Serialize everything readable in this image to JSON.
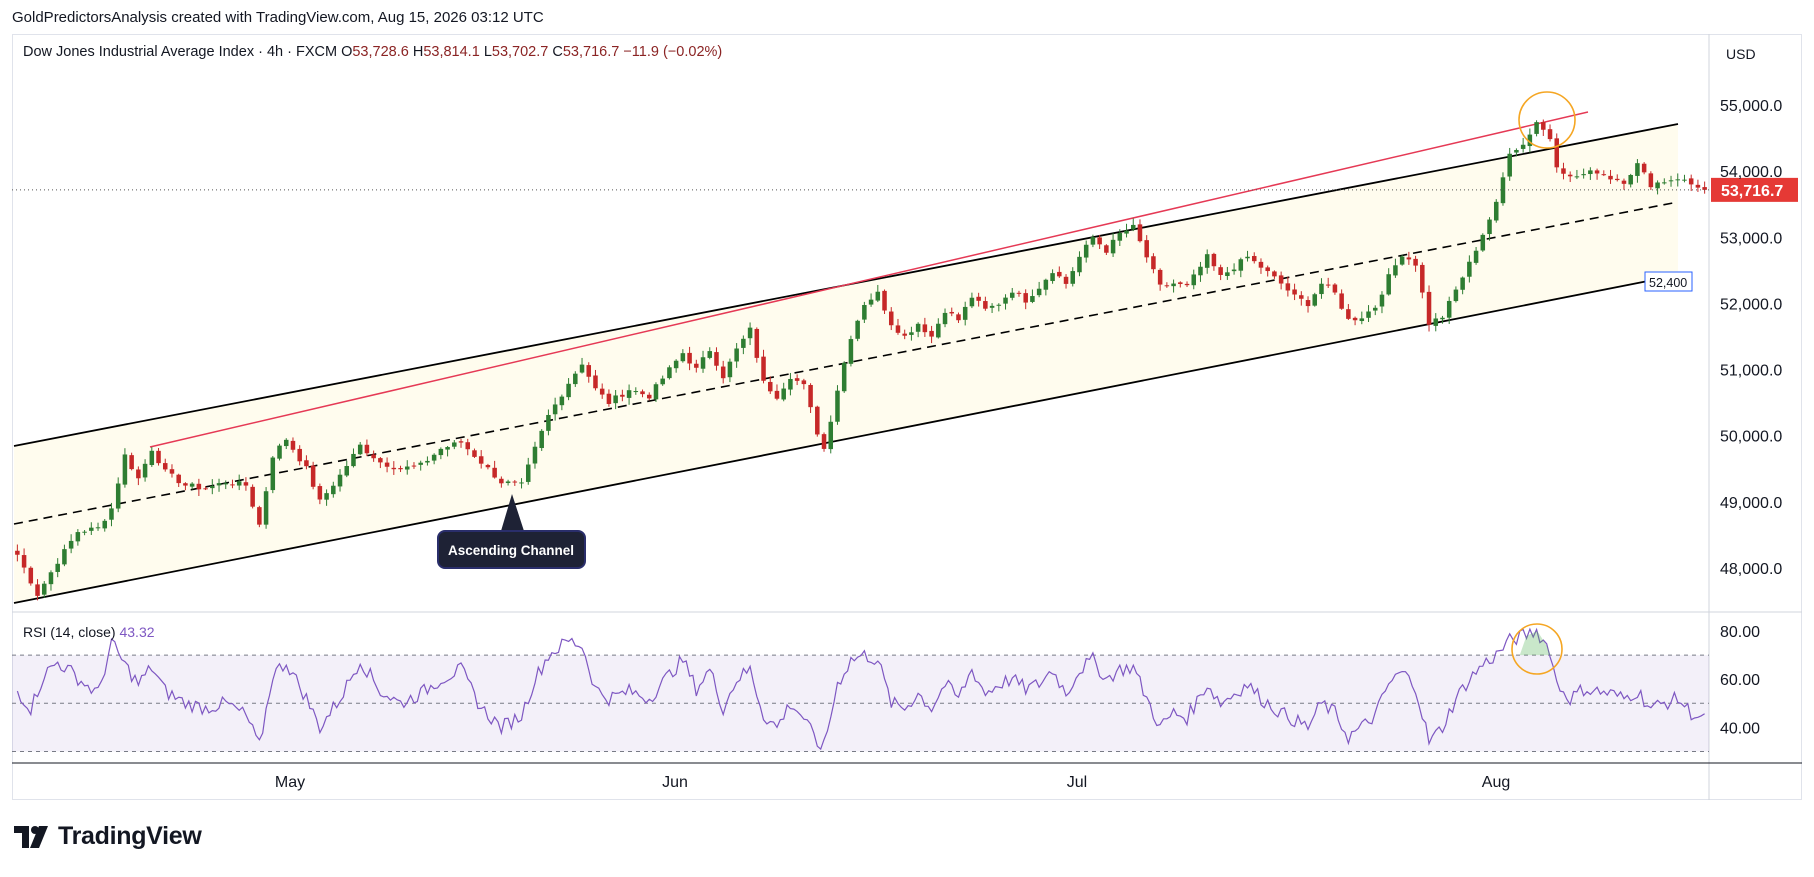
{
  "header": {
    "attribution": "GoldPredictorsAnalysis created with TradingView.com, Aug 15, 2026 03:12 UTC"
  },
  "legend": {
    "symbol": "Dow Jones Industrial Average Index · 4h · FXCM",
    "open_label": "O",
    "open": "53,728.6",
    "high_label": "H",
    "high": "53,814.1",
    "low_label": "L",
    "low": "53,702.7",
    "close_label": "C",
    "close": "53,716.7",
    "change": "−11.9 (−0.02%)"
  },
  "currency": "USD",
  "footer": {
    "brand": "TradingView"
  },
  "colors": {
    "up": "#26a69a",
    "up_candle": "#2e7d32",
    "down": "#c62828",
    "rsi": "#7e57c2",
    "red_trendline": "#e53955",
    "last_price": "#e53935",
    "annotation_circle": "#f5a623"
  },
  "chart_data": [
    {
      "type": "candlestick",
      "title": "Dow Jones Industrial Average Index · 4h · FXCM",
      "y_ticks": [
        "55,000.0",
        "54,000.0",
        "53,000.0",
        "52,000.0",
        "51,000.0",
        "50,000.0",
        "49,000.0",
        "48,000.0"
      ],
      "y_tick_values": [
        55000,
        54000,
        53000,
        52000,
        51000,
        50000,
        49000,
        48000
      ],
      "ylim": [
        47450,
        55750
      ],
      "x_ticks": [
        "May",
        "Jun",
        "Jul",
        "Aug"
      ],
      "last_price": {
        "value": 53716.7,
        "label": "53,716.7"
      },
      "channel_label": {
        "value": 52400,
        "label": "52,400"
      },
      "annotation": {
        "text": "Ascending Channel"
      },
      "price_path": [
        [
          0,
          48200
        ],
        [
          3,
          47600
        ],
        [
          6,
          48100
        ],
        [
          9,
          48550
        ],
        [
          12,
          48600
        ],
        [
          14,
          48900
        ],
        [
          16,
          49700
        ],
        [
          18,
          49350
        ],
        [
          20,
          49800
        ],
        [
          22,
          49450
        ],
        [
          25,
          49250
        ],
        [
          28,
          49200
        ],
        [
          31,
          49300
        ],
        [
          34,
          49250
        ],
        [
          36,
          48650
        ],
        [
          38,
          49700
        ],
        [
          40,
          49950
        ],
        [
          43,
          49500
        ],
        [
          45,
          49000
        ],
        [
          48,
          49400
        ],
        [
          51,
          49850
        ],
        [
          54,
          49600
        ],
        [
          57,
          49500
        ],
        [
          60,
          49550
        ],
        [
          63,
          49800
        ],
        [
          66,
          49900
        ],
        [
          69,
          49600
        ],
        [
          72,
          49300
        ],
        [
          75,
          49250
        ],
        [
          77,
          49800
        ],
        [
          79,
          50300
        ],
        [
          82,
          50800
        ],
        [
          84,
          51100
        ],
        [
          86,
          50700
        ],
        [
          88,
          50500
        ],
        [
          91,
          50700
        ],
        [
          94,
          50600
        ],
        [
          97,
          51000
        ],
        [
          99,
          51250
        ],
        [
          101,
          51000
        ],
        [
          103,
          51300
        ],
        [
          105,
          50900
        ],
        [
          107,
          51300
        ],
        [
          109,
          51600
        ],
        [
          111,
          50800
        ],
        [
          113,
          50600
        ],
        [
          115,
          50900
        ],
        [
          117,
          50750
        ],
        [
          119,
          50050
        ],
        [
          120,
          49800
        ],
        [
          122,
          50700
        ],
        [
          124,
          51500
        ],
        [
          126,
          52000
        ],
        [
          128,
          52150
        ],
        [
          130,
          51700
        ],
        [
          132,
          51500
        ],
        [
          134,
          51700
        ],
        [
          136,
          51500
        ],
        [
          138,
          51900
        ],
        [
          140,
          51750
        ],
        [
          142,
          52100
        ],
        [
          144,
          51900
        ],
        [
          146,
          52000
        ],
        [
          148,
          52200
        ],
        [
          150,
          52050
        ],
        [
          152,
          52250
        ],
        [
          154,
          52500
        ],
        [
          156,
          52300
        ],
        [
          158,
          52700
        ],
        [
          160,
          53000
        ],
        [
          162,
          52800
        ],
        [
          164,
          53050
        ],
        [
          166,
          53150
        ],
        [
          168,
          52700
        ],
        [
          170,
          52250
        ],
        [
          172,
          52300
        ],
        [
          174,
          52250
        ],
        [
          177,
          52700
        ],
        [
          179,
          52400
        ],
        [
          181,
          52550
        ],
        [
          183,
          52700
        ],
        [
          185,
          52550
        ],
        [
          188,
          52300
        ],
        [
          190,
          52100
        ],
        [
          192,
          52000
        ],
        [
          194,
          52300
        ],
        [
          196,
          52150
        ],
        [
          198,
          51750
        ],
        [
          200,
          51800
        ],
        [
          202,
          51950
        ],
        [
          204,
          52400
        ],
        [
          206,
          52750
        ],
        [
          208,
          52600
        ],
        [
          210,
          51700
        ],
        [
          212,
          51800
        ],
        [
          214,
          52200
        ],
        [
          216,
          52600
        ],
        [
          218,
          53050
        ],
        [
          220,
          53500
        ],
        [
          222,
          54300
        ],
        [
          224,
          54400
        ],
        [
          226,
          54750
        ],
        [
          228,
          54500
        ],
        [
          229,
          54100
        ],
        [
          231,
          53900
        ],
        [
          233,
          53950
        ],
        [
          235,
          54000
        ],
        [
          237,
          53900
        ],
        [
          239,
          53850
        ],
        [
          241,
          54100
        ],
        [
          243,
          53800
        ],
        [
          245,
          53850
        ],
        [
          247,
          53900
        ],
        [
          249,
          53800
        ],
        [
          251,
          53750
        ]
      ]
    },
    {
      "type": "line",
      "title": "RSI (14, close)",
      "value_label": "43.32",
      "y_ticks": [
        "80.00",
        "60.00",
        "40.00"
      ],
      "y_tick_values": [
        80,
        60,
        40
      ],
      "ylim": [
        30,
        83
      ],
      "bands": [
        70,
        50,
        30
      ],
      "x_ticks": [
        "May",
        "Jun",
        "Jul",
        "Aug"
      ],
      "values": [
        [
          0,
          55
        ],
        [
          2,
          48
        ],
        [
          4,
          62
        ],
        [
          6,
          67
        ],
        [
          8,
          63
        ],
        [
          10,
          58
        ],
        [
          12,
          54
        ],
        [
          14,
          75
        ],
        [
          16,
          66
        ],
        [
          18,
          58
        ],
        [
          20,
          65
        ],
        [
          22,
          55
        ],
        [
          25,
          50
        ],
        [
          28,
          48
        ],
        [
          31,
          50
        ],
        [
          34,
          45
        ],
        [
          36,
          32
        ],
        [
          38,
          62
        ],
        [
          40,
          67
        ],
        [
          43,
          52
        ],
        [
          45,
          40
        ],
        [
          48,
          52
        ],
        [
          51,
          68
        ],
        [
          54,
          55
        ],
        [
          57,
          50
        ],
        [
          60,
          54
        ],
        [
          63,
          60
        ],
        [
          66,
          64
        ],
        [
          69,
          48
        ],
        [
          72,
          40
        ],
        [
          75,
          45
        ],
        [
          77,
          60
        ],
        [
          79,
          70
        ],
        [
          82,
          76
        ],
        [
          84,
          74
        ],
        [
          86,
          56
        ],
        [
          88,
          52
        ],
        [
          91,
          55
        ],
        [
          94,
          52
        ],
        [
          97,
          62
        ],
        [
          99,
          68
        ],
        [
          101,
          56
        ],
        [
          103,
          64
        ],
        [
          105,
          48
        ],
        [
          107,
          60
        ],
        [
          109,
          64
        ],
        [
          111,
          45
        ],
        [
          113,
          40
        ],
        [
          115,
          50
        ],
        [
          117,
          44
        ],
        [
          119,
          33
        ],
        [
          120,
          32
        ],
        [
          122,
          58
        ],
        [
          124,
          68
        ],
        [
          126,
          70
        ],
        [
          128,
          68
        ],
        [
          130,
          50
        ],
        [
          132,
          48
        ],
        [
          134,
          54
        ],
        [
          136,
          48
        ],
        [
          138,
          58
        ],
        [
          140,
          52
        ],
        [
          142,
          64
        ],
        [
          144,
          54
        ],
        [
          146,
          58
        ],
        [
          148,
          60
        ],
        [
          150,
          56
        ],
        [
          152,
          58
        ],
        [
          154,
          64
        ],
        [
          156,
          54
        ],
        [
          158,
          64
        ],
        [
          160,
          68
        ],
        [
          162,
          60
        ],
        [
          164,
          64
        ],
        [
          166,
          65
        ],
        [
          168,
          52
        ],
        [
          170,
          40
        ],
        [
          172,
          46
        ],
        [
          174,
          44
        ],
        [
          177,
          58
        ],
        [
          179,
          50
        ],
        [
          181,
          54
        ],
        [
          183,
          58
        ],
        [
          185,
          52
        ],
        [
          188,
          46
        ],
        [
          190,
          43
        ],
        [
          192,
          40
        ],
        [
          194,
          50
        ],
        [
          196,
          46
        ],
        [
          198,
          36
        ],
        [
          200,
          40
        ],
        [
          202,
          45
        ],
        [
          204,
          58
        ],
        [
          206,
          63
        ],
        [
          208,
          57
        ],
        [
          210,
          34
        ],
        [
          212,
          40
        ],
        [
          214,
          52
        ],
        [
          216,
          60
        ],
        [
          218,
          66
        ],
        [
          220,
          70
        ],
        [
          222,
          76
        ],
        [
          224,
          78
        ],
        [
          226,
          80
        ],
        [
          228,
          72
        ],
        [
          229,
          58
        ],
        [
          231,
          52
        ],
        [
          233,
          56
        ],
        [
          235,
          55
        ],
        [
          237,
          54
        ],
        [
          239,
          52
        ],
        [
          241,
          55
        ],
        [
          243,
          48
        ],
        [
          245,
          50
        ],
        [
          247,
          52
        ],
        [
          249,
          46
        ],
        [
          251,
          43
        ]
      ]
    }
  ]
}
